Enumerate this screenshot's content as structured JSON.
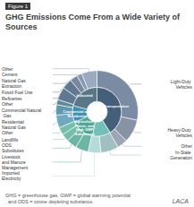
{
  "chart_data": {
    "type": "donut",
    "title": "GHG Emissions Come From a Wide Variety of Sources",
    "annotations": {
      "figure_label": "Figure 1",
      "footnote": "GHG = greenhouse gas, GWP = global warming potential, and ODS = ozone depleting substance.",
      "source": "LACA"
    },
    "series": [
      {
        "categories": [
          "Transportation",
          "Electricity",
          "Agriculture,\nPlants, and\nHigh GWP\nSubstances",
          "Commercial and\nResidential",
          "Industrial"
        ],
        "values": [
          41,
          12,
          15,
          11,
          21
        ],
        "colors": [
          "#445f7a",
          "#70c0b8",
          "#50a898",
          "#4090b0",
          "#587888"
        ]
      },
      {
        "categories": [
          "Light-Duty Vehicles",
          "Heavy-Duty Vehicles",
          "Other",
          "In-State Generation",
          "Imported\nElectricity",
          "Livestock\nand Manure\nManagement",
          "ODS\nSubstitutes",
          "Landfills",
          "Other",
          "Residential Natural Gas",
          "Commercial Natural Gas",
          "Other",
          "Refineries",
          "Fossil Fuel Use",
          "Natural Gas\nExtraction",
          "Cement",
          "Other"
        ],
        "values": [
          28,
          9,
          4,
          7,
          5,
          5,
          4,
          3,
          3,
          5,
          4,
          2,
          5,
          4,
          3,
          2,
          6
        ],
        "colors": [
          "#7a8ba3",
          "#8892a5",
          "#9ba5b5",
          "#a0bfc0",
          "#b5dbd8",
          "#6db5a5",
          "#6db5a5",
          "#75bfaa",
          "#75bfaa",
          "#70a8bf",
          "#6098af",
          "#608898",
          "#607890",
          "#607890",
          "#7888a0",
          "#8898b0",
          "#9aaac0"
        ]
      }
    ]
  }
}
